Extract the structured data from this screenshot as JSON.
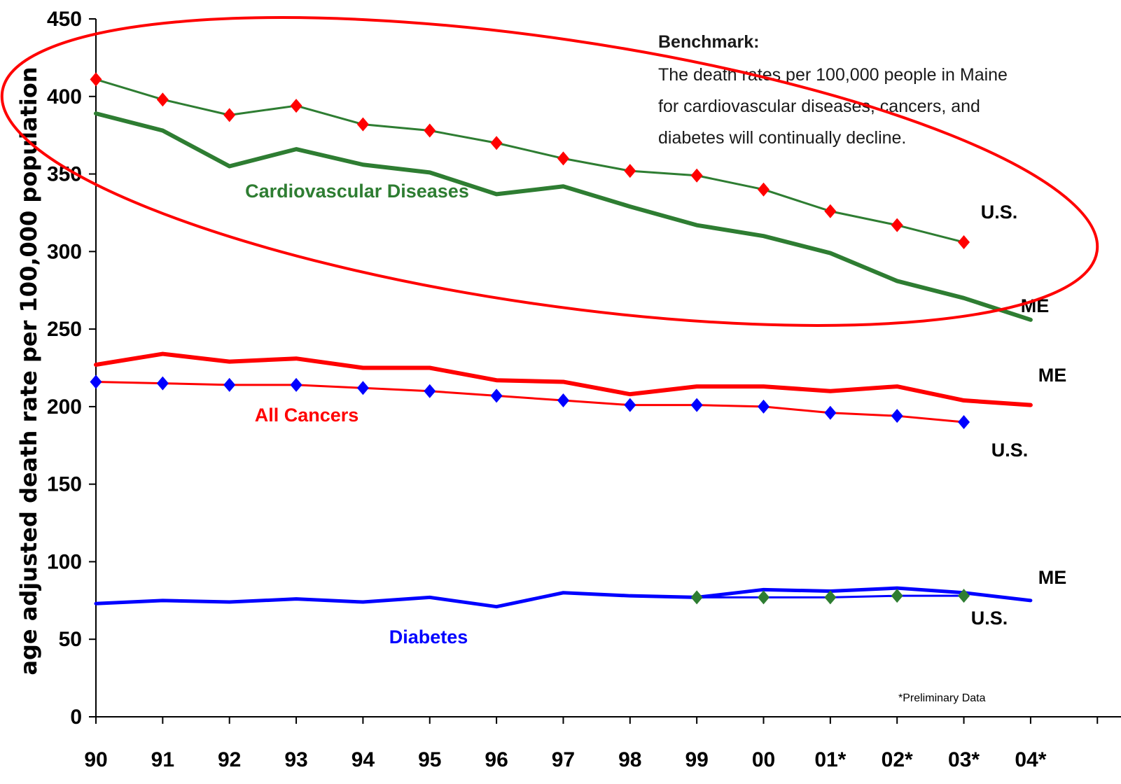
{
  "chart_data": {
    "type": "line",
    "ylabel": "age adjusted death rate per 100,000 population",
    "ylim": [
      0,
      450
    ],
    "yticks": [
      0,
      50,
      100,
      150,
      200,
      250,
      300,
      350,
      400,
      450
    ],
    "categories": [
      "90",
      "91",
      "92",
      "93",
      "94",
      "95",
      "96",
      "97",
      "98",
      "99",
      "00",
      "01*",
      "02*",
      "03*",
      "04*"
    ],
    "grid": false,
    "series": [
      {
        "id": "cvd_us",
        "name": "U.S.",
        "group": "Cardiovascular Diseases",
        "color": "#2e7d32",
        "marker_color": "#ff0000",
        "marker": "diamond",
        "width": 3,
        "values": [
          411,
          398,
          388,
          394,
          382,
          378,
          370,
          360,
          352,
          349,
          340,
          326,
          317,
          306,
          null
        ]
      },
      {
        "id": "cvd_me",
        "name": "ME",
        "group": "Cardiovascular Diseases",
        "color": "#2e7d32",
        "marker": "none",
        "width": 6,
        "values": [
          389,
          378,
          355,
          366,
          356,
          351,
          337,
          342,
          329,
          317,
          310,
          299,
          281,
          270,
          256
        ]
      },
      {
        "id": "cancer_me",
        "name": "ME",
        "group": "All Cancers",
        "color": "#ff0000",
        "marker": "none",
        "width": 6,
        "values": [
          227,
          234,
          229,
          231,
          225,
          225,
          217,
          216,
          208,
          213,
          213,
          210,
          213,
          204,
          201
        ]
      },
      {
        "id": "cancer_us",
        "name": "U.S.",
        "group": "All Cancers",
        "color": "#ff0000",
        "marker_color": "#0000ff",
        "marker": "diamond",
        "width": 3,
        "values": [
          216,
          215,
          214,
          214,
          212,
          210,
          207,
          204,
          201,
          201,
          200,
          196,
          194,
          190,
          null
        ]
      },
      {
        "id": "diab_me",
        "name": "ME",
        "group": "Diabetes",
        "color": "#0000ff",
        "marker": "none",
        "width": 5,
        "values": [
          73,
          75,
          74,
          76,
          74,
          77,
          71,
          80,
          78,
          77,
          82,
          81,
          83,
          80,
          75
        ]
      },
      {
        "id": "diab_us",
        "name": "U.S.",
        "group": "Diabetes",
        "color": "#0000ff",
        "marker_color": "#2e7d32",
        "marker": "diamond",
        "width": 3,
        "values": [
          null,
          null,
          null,
          null,
          null,
          null,
          null,
          null,
          null,
          77,
          77,
          77,
          78,
          78,
          null
        ]
      }
    ],
    "group_labels": [
      {
        "text": "Cardiovascular Diseases",
        "color": "#2e7d32"
      },
      {
        "text": "All Cancers",
        "color": "#ff0000"
      },
      {
        "text": "Diabetes",
        "color": "#0000ff"
      }
    ],
    "end_labels": [
      {
        "text": "U.S.",
        "series": "cvd_us"
      },
      {
        "text": "ME",
        "series": "cvd_me"
      },
      {
        "text": "ME",
        "series": "cancer_me"
      },
      {
        "text": "U.S.",
        "series": "cancer_us"
      },
      {
        "text": "ME",
        "series": "diab_me"
      },
      {
        "text": "U.S.",
        "series": "diab_us"
      }
    ],
    "annotations": {
      "benchmark_title": "Benchmark:",
      "benchmark_lines": [
        "The death rates per 100,000 people in Maine",
        "for cardiovascular diseases, cancers, and",
        "diabetes will continually decline."
      ],
      "footnote": "*Preliminary Data",
      "highlight_ellipse_color": "#ff0000"
    }
  }
}
